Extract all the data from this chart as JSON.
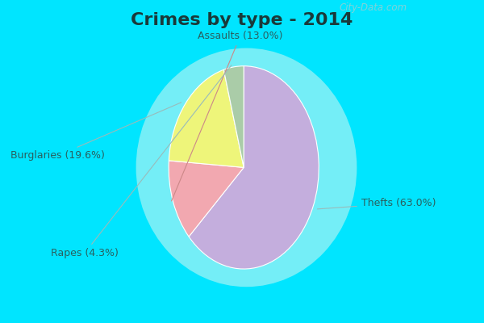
{
  "title": "Crimes by type - 2014",
  "title_fontsize": 16,
  "title_fontweight": "bold",
  "slices": [
    {
      "label": "Thefts",
      "value": 63.0,
      "color": "#c4aedd"
    },
    {
      "label": "Assaults",
      "value": 13.0,
      "color": "#f2a8b0"
    },
    {
      "label": "Burglaries",
      "value": 19.6,
      "color": "#eef57a"
    },
    {
      "label": "Rapes",
      "value": 4.3,
      "color": "#aacca8"
    }
  ],
  "background_cyan": "#00e5ff",
  "background_mint": "#cceedd",
  "watermark": "City-Data.com",
  "label_fontsize": 9,
  "label_color": "#2a6060",
  "title_color": "#1a3a3a",
  "startangle": 90,
  "counterclock": false
}
